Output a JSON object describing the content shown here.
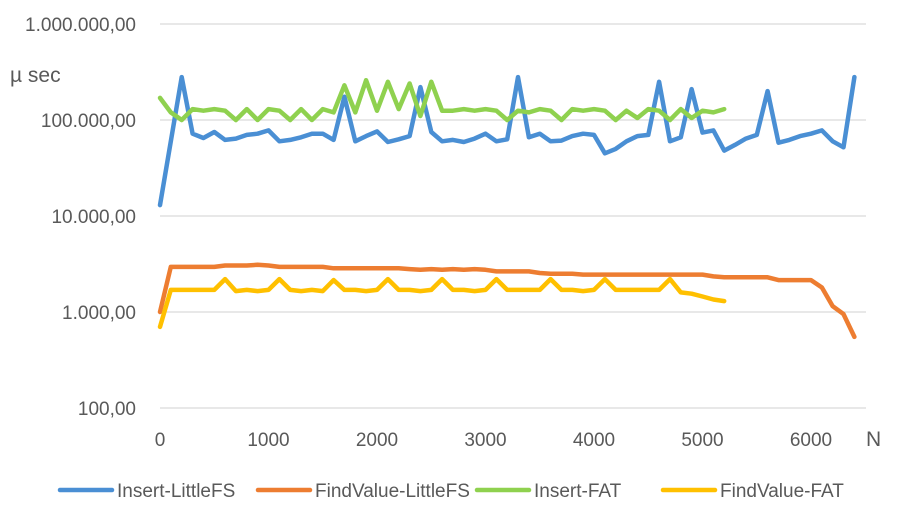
{
  "chart_data": {
    "type": "line",
    "title": "",
    "xlabel": "N",
    "ylabel": "µ sec",
    "yscale": "log",
    "ylim": [
      100,
      1000000
    ],
    "xlim": [
      0,
      6400
    ],
    "y_ticks": [
      {
        "value": 100,
        "label": "100,00"
      },
      {
        "value": 1000,
        "label": "1.000,00"
      },
      {
        "value": 10000,
        "label": "10.000,00"
      },
      {
        "value": 100000,
        "label": "100.000,00"
      },
      {
        "value": 1000000,
        "label": "1.000.000,00"
      }
    ],
    "x_ticks": [
      {
        "value": 0,
        "label": "0"
      },
      {
        "value": 1000,
        "label": "1000"
      },
      {
        "value": 2000,
        "label": "2000"
      },
      {
        "value": 3000,
        "label": "3000"
      },
      {
        "value": 4000,
        "label": "4000"
      },
      {
        "value": 5000,
        "label": "5000"
      },
      {
        "value": 6000,
        "label": "6000"
      }
    ],
    "grid": "horizontal",
    "legend_position": "bottom",
    "series": [
      {
        "name": "Insert-LittleFS",
        "color": "#4a8fd4",
        "x": [
          0,
          200,
          300,
          400,
          500,
          600,
          700,
          800,
          900,
          1000,
          1100,
          1200,
          1300,
          1400,
          1500,
          1600,
          1700,
          1800,
          1900,
          2000,
          2100,
          2200,
          2300,
          2400,
          2500,
          2600,
          2700,
          2800,
          2900,
          3000,
          3100,
          3200,
          3300,
          3400,
          3500,
          3600,
          3700,
          3800,
          3900,
          4000,
          4100,
          4200,
          4300,
          4400,
          4500,
          4600,
          4700,
          4800,
          4900,
          5000,
          5100,
          5200,
          5300,
          5400,
          5500,
          5600,
          5700,
          5800,
          5900,
          6000,
          6100,
          6200,
          6300,
          6400
        ],
        "y": [
          13000,
          280000,
          72000,
          65000,
          75000,
          62000,
          64000,
          70000,
          72000,
          78000,
          60000,
          62000,
          66000,
          72000,
          72000,
          62000,
          175000,
          60000,
          68000,
          76000,
          59000,
          63000,
          68000,
          220000,
          75000,
          60000,
          62000,
          59000,
          64000,
          72000,
          60000,
          63000,
          280000,
          66000,
          72000,
          60000,
          61000,
          68000,
          72000,
          70000,
          45000,
          50000,
          60000,
          68000,
          70000,
          250000,
          60000,
          66000,
          210000,
          74000,
          78000,
          48000,
          55000,
          64000,
          70000,
          200000,
          58000,
          62000,
          68000,
          72000,
          78000,
          60000,
          52000,
          280000
        ]
      },
      {
        "name": "FindValue-LittleFS",
        "color": "#ed7d31",
        "x": [
          0,
          100,
          200,
          300,
          400,
          500,
          600,
          700,
          800,
          900,
          1000,
          1100,
          1200,
          1300,
          1400,
          1500,
          1600,
          1700,
          1800,
          1900,
          2000,
          2100,
          2200,
          2300,
          2400,
          2500,
          2600,
          2700,
          2800,
          2900,
          3000,
          3100,
          3200,
          3300,
          3400,
          3500,
          3600,
          3700,
          3800,
          3900,
          4000,
          4100,
          4200,
          4300,
          4400,
          4500,
          4600,
          4700,
          4800,
          4900,
          5000,
          5100,
          5200,
          5300,
          5400,
          5500,
          5600,
          5700,
          5800,
          5900,
          6000,
          6100,
          6200,
          6300,
          6400
        ],
        "y": [
          1000,
          2950,
          2950,
          2950,
          2950,
          2950,
          3050,
          3050,
          3050,
          3100,
          3050,
          2950,
          2950,
          2950,
          2950,
          2950,
          2850,
          2850,
          2850,
          2850,
          2850,
          2850,
          2850,
          2800,
          2750,
          2800,
          2750,
          2800,
          2750,
          2800,
          2750,
          2650,
          2650,
          2650,
          2650,
          2550,
          2500,
          2500,
          2500,
          2450,
          2450,
          2450,
          2450,
          2450,
          2450,
          2450,
          2450,
          2450,
          2450,
          2450,
          2450,
          2350,
          2300,
          2300,
          2300,
          2300,
          2300,
          2150,
          2150,
          2150,
          2150,
          1800,
          1150,
          950,
          550
        ]
      },
      {
        "name": "Insert-FAT",
        "color": "#8fd14f",
        "x": [
          0,
          100,
          200,
          300,
          400,
          500,
          600,
          700,
          800,
          900,
          1000,
          1100,
          1200,
          1300,
          1400,
          1500,
          1600,
          1700,
          1800,
          1900,
          2000,
          2100,
          2200,
          2300,
          2400,
          2500,
          2600,
          2700,
          2800,
          2900,
          3000,
          3100,
          3200,
          3300,
          3400,
          3500,
          3600,
          3700,
          3800,
          3900,
          4000,
          4100,
          4200,
          4300,
          4400,
          4500,
          4600,
          4700,
          4800,
          4900,
          5000,
          5100,
          5200
        ],
        "y": [
          170000,
          120000,
          100000,
          130000,
          125000,
          130000,
          125000,
          100000,
          130000,
          100000,
          130000,
          125000,
          100000,
          130000,
          100000,
          130000,
          120000,
          230000,
          120000,
          260000,
          125000,
          250000,
          130000,
          240000,
          110000,
          250000,
          125000,
          125000,
          130000,
          125000,
          130000,
          125000,
          100000,
          125000,
          120000,
          130000,
          125000,
          100000,
          130000,
          125000,
          130000,
          125000,
          100000,
          125000,
          105000,
          130000,
          125000,
          100000,
          130000,
          105000,
          125000,
          120000,
          130000
        ]
      },
      {
        "name": "FindValue-FAT",
        "color": "#ffc000",
        "x": [
          0,
          100,
          200,
          300,
          400,
          500,
          600,
          700,
          800,
          900,
          1000,
          1100,
          1200,
          1300,
          1400,
          1500,
          1600,
          1700,
          1800,
          1900,
          2000,
          2100,
          2200,
          2300,
          2400,
          2500,
          2600,
          2700,
          2800,
          2900,
          3000,
          3100,
          3200,
          3300,
          3400,
          3500,
          3600,
          3700,
          3800,
          3900,
          4000,
          4100,
          4200,
          4300,
          4400,
          4500,
          4600,
          4700,
          4800,
          4900,
          5000,
          5100,
          5200
        ],
        "y": [
          700,
          1700,
          1700,
          1700,
          1700,
          1700,
          2200,
          1650,
          1700,
          1650,
          1700,
          2200,
          1700,
          1650,
          1700,
          1650,
          2150,
          1700,
          1700,
          1650,
          1700,
          2200,
          1700,
          1700,
          1650,
          1700,
          2200,
          1700,
          1700,
          1650,
          1700,
          2200,
          1700,
          1700,
          1700,
          1700,
          2200,
          1700,
          1700,
          1650,
          1700,
          2200,
          1700,
          1700,
          1700,
          1700,
          1700,
          2200,
          1600,
          1550,
          1450,
          1350,
          1300
        ]
      }
    ]
  }
}
